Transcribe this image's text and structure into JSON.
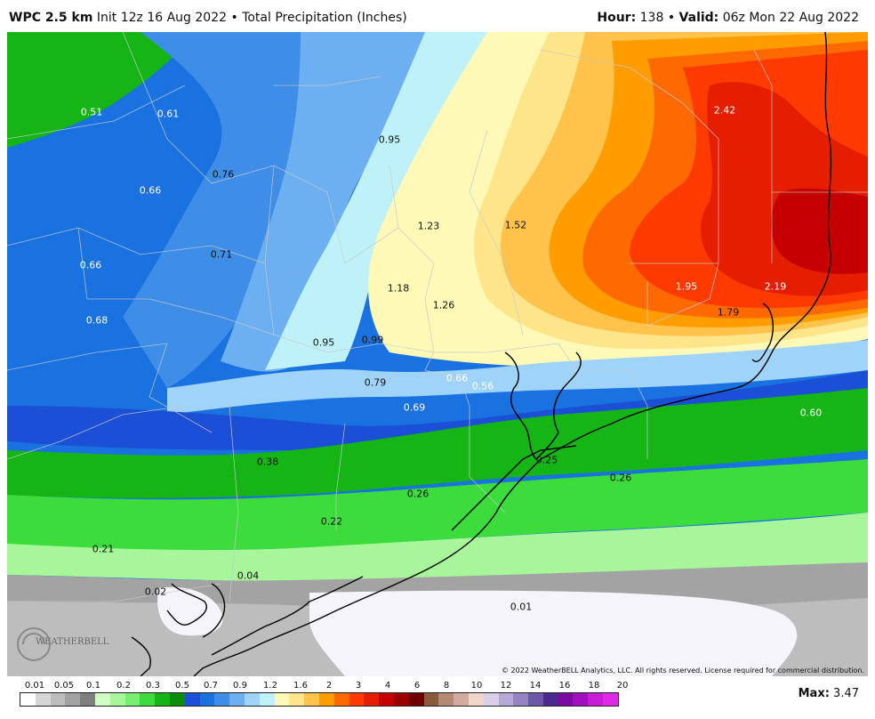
{
  "header": {
    "model": "WPC 2.5 km",
    "init": "Init 12z 16 Aug 2022",
    "separator": "•",
    "product": "Total Precipitation (Inches)",
    "hour_label": "Hour:",
    "hour_value": "138",
    "valid_label": "Valid:",
    "valid_value": "06z Mon 22 Aug 2022"
  },
  "map": {
    "copyright": "© 2022 WeatherBELL Analytics, LLC. All rights reserved. License required for commercial distribution.",
    "logo_text": "WEATHERBELL",
    "labels": [
      {
        "value": "0.51"
      },
      {
        "value": "0.61"
      },
      {
        "value": "0.95"
      },
      {
        "value": "2.42"
      },
      {
        "value": "0.76"
      },
      {
        "value": "0.66"
      },
      {
        "value": "1.23"
      },
      {
        "value": "1.52"
      },
      {
        "value": "0.71"
      },
      {
        "value": "0.66"
      },
      {
        "value": "1.18"
      },
      {
        "value": "1.26"
      },
      {
        "value": "1.95"
      },
      {
        "value": "2.19"
      },
      {
        "value": "1.79"
      },
      {
        "value": "0.68"
      },
      {
        "value": "0.95"
      },
      {
        "value": "0.99"
      },
      {
        "value": "0.79"
      },
      {
        "value": "0.66"
      },
      {
        "value": "0.56"
      },
      {
        "value": "0.69"
      },
      {
        "value": "0.60"
      },
      {
        "value": "0.38"
      },
      {
        "value": "0.25"
      },
      {
        "value": "0.26"
      },
      {
        "value": "0.26"
      },
      {
        "value": "0.22"
      },
      {
        "value": "0.21"
      },
      {
        "value": "0.04"
      },
      {
        "value": "0.02"
      },
      {
        "value": "0.01"
      }
    ]
  },
  "legend": {
    "bins": [
      {
        "color": "#ffffff"
      },
      {
        "color": "#d6d6d6"
      },
      {
        "color": "#bdbdbd"
      },
      {
        "color": "#a3a3a3"
      },
      {
        "color": "#7f7f7f"
      },
      {
        "color": "#cfffc4"
      },
      {
        "color": "#a7f79a"
      },
      {
        "color": "#77ef71"
      },
      {
        "color": "#3ddc3d"
      },
      {
        "color": "#15b515"
      },
      {
        "color": "#0a8e0a"
      },
      {
        "color": "#1a4fd6"
      },
      {
        "color": "#1a72e0"
      },
      {
        "color": "#3e8ee8"
      },
      {
        "color": "#6db0f2"
      },
      {
        "color": "#9fd3f7"
      },
      {
        "color": "#bff2f8"
      },
      {
        "color": "#fff9b8"
      },
      {
        "color": "#ffe58a"
      },
      {
        "color": "#ffc24a"
      },
      {
        "color": "#ff9d00"
      },
      {
        "color": "#ff6a00"
      },
      {
        "color": "#ff3a00"
      },
      {
        "color": "#e51e00"
      },
      {
        "color": "#c60000"
      },
      {
        "color": "#9a0000"
      },
      {
        "color": "#6e0000"
      },
      {
        "color": "#8a5a3c"
      },
      {
        "color": "#b48a74"
      },
      {
        "color": "#d2aaa0"
      },
      {
        "color": "#f0d6c8"
      },
      {
        "color": "#d8d0e8"
      },
      {
        "color": "#b6a9d8"
      },
      {
        "color": "#9484c2"
      },
      {
        "color": "#6d58a8"
      },
      {
        "color": "#4a2a8e"
      },
      {
        "color": "#7a0aa0"
      },
      {
        "color": "#a010c0"
      },
      {
        "color": "#c81cd8"
      },
      {
        "color": "#e028e8"
      }
    ],
    "ticks": [
      "0.01",
      "0.05",
      "0.1",
      "0.2",
      "0.3",
      "0.5",
      "0.7",
      "0.9",
      "1.2",
      "1.6",
      "2",
      "3",
      "4",
      "6",
      "8",
      "10",
      "12",
      "14",
      "16",
      "18",
      "20"
    ],
    "max_label": "Max:",
    "max_value": "3.47"
  }
}
